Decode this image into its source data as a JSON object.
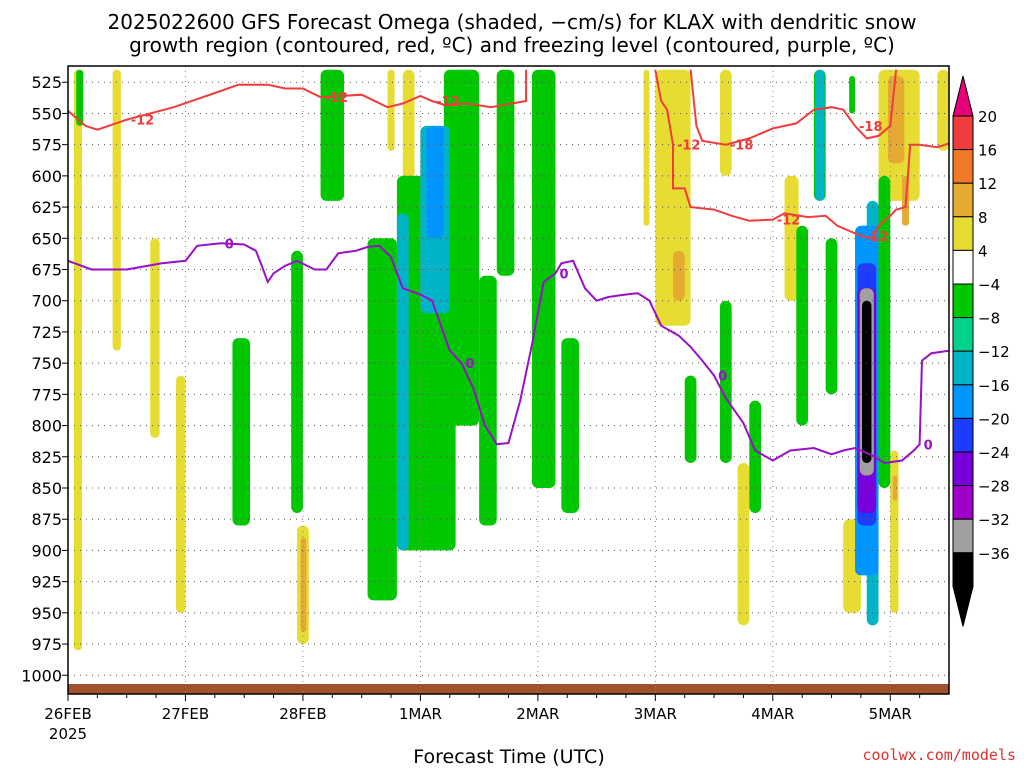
{
  "chart_data": {
    "type": "heatmap",
    "title_lines": [
      "2025022600 GFS Forecast Omega (shaded, −cm/s) for KLAX with dendritic snow",
      "growth region (contoured, red, ºC) and freezing level (contoured, purple, ºC)"
    ],
    "xlabel": "Forecast Time (UTC)",
    "x_ticks": [
      "26FEB",
      "27FEB",
      "28FEB",
      "1MAR",
      "2MAR",
      "3MAR",
      "4MAR",
      "5MAR"
    ],
    "x_year": "2025",
    "x_range_days": [
      0,
      7.5
    ],
    "y_ticks": [
      525,
      550,
      575,
      600,
      625,
      650,
      675,
      700,
      725,
      750,
      775,
      800,
      825,
      850,
      875,
      900,
      925,
      950,
      975,
      1000
    ],
    "y_range_hpa": [
      1015,
      512
    ],
    "y_axis": "pressure (hPa), reversed",
    "grid": true,
    "colorbar": {
      "labels": [
        "20",
        "16",
        "12",
        "8",
        "4",
        "−4",
        "−8",
        "−12",
        "−16",
        "−20",
        "−24",
        "−28",
        "−32",
        "−36"
      ],
      "colors": [
        "#f03c3c",
        "#f07828",
        "#e6aa32",
        "#e6dc32",
        "#ffffff",
        "#00c800",
        "#00d28c",
        "#00b4c8",
        "#0096ff",
        "#1e3cff",
        "#7800dc",
        "#a000c8",
        "#a0a0a0",
        "#000000"
      ],
      "over_color": "#e6007a",
      "under_color": "#000000"
    },
    "shaded_regions": [
      {
        "color": "#e6dc32",
        "x": [
          0.05,
          0.12
        ],
        "p": [
          515,
          980
        ]
      },
      {
        "color": "#e6dc32",
        "x": [
          0.38,
          0.45
        ],
        "p": [
          515,
          740
        ]
      },
      {
        "color": "#e6dc32",
        "x": [
          0.7,
          0.78
        ],
        "p": [
          650,
          810
        ]
      },
      {
        "color": "#e6dc32",
        "x": [
          0.92,
          1.0
        ],
        "p": [
          760,
          950
        ]
      },
      {
        "color": "#e6dc32",
        "x": [
          1.95,
          2.05
        ],
        "p": [
          880,
          975
        ]
      },
      {
        "color": "#e6aa32",
        "x": [
          1.98,
          2.03
        ],
        "p": [
          890,
          965
        ]
      },
      {
        "color": "#e6dc32",
        "x": [
          2.72,
          2.78
        ],
        "p": [
          515,
          580
        ]
      },
      {
        "color": "#e6dc32",
        "x": [
          2.85,
          2.95
        ],
        "p": [
          515,
          610
        ]
      },
      {
        "color": "#e6dc32",
        "x": [
          3.65,
          3.75
        ],
        "p": [
          515,
          610
        ]
      },
      {
        "color": "#e6dc32",
        "x": [
          4.9,
          4.95
        ],
        "p": [
          515,
          640
        ]
      },
      {
        "color": "#e6dc32",
        "x": [
          5.0,
          5.3
        ],
        "p": [
          515,
          720
        ]
      },
      {
        "color": "#e6aa32",
        "x": [
          5.15,
          5.25
        ],
        "p": [
          660,
          700
        ]
      },
      {
        "color": "#e6dc32",
        "x": [
          5.55,
          5.65
        ],
        "p": [
          515,
          600
        ]
      },
      {
        "color": "#e6dc32",
        "x": [
          5.7,
          5.8
        ],
        "p": [
          830,
          960
        ]
      },
      {
        "color": "#e6dc32",
        "x": [
          6.6,
          6.75
        ],
        "p": [
          875,
          950
        ]
      },
      {
        "color": "#e6dc32",
        "x": [
          6.85,
          6.9
        ],
        "p": [
          870,
          900
        ]
      },
      {
        "color": "#e6dc32",
        "x": [
          6.1,
          6.22
        ],
        "p": [
          600,
          700
        ]
      },
      {
        "color": "#e6dc32",
        "x": [
          6.9,
          7.25
        ],
        "p": [
          515,
          620
        ]
      },
      {
        "color": "#e6aa32",
        "x": [
          6.98,
          7.12
        ],
        "p": [
          520,
          590
        ]
      },
      {
        "color": "#e6aa32",
        "x": [
          7.1,
          7.16
        ],
        "p": [
          600,
          640
        ]
      },
      {
        "color": "#e6dc32",
        "x": [
          7.4,
          7.5
        ],
        "p": [
          515,
          580
        ]
      },
      {
        "color": "#e6dc32",
        "x": [
          7.0,
          7.07
        ],
        "p": [
          820,
          950
        ]
      },
      {
        "color": "#e6aa32",
        "x": [
          7.02,
          7.06
        ],
        "p": [
          840,
          860
        ]
      },
      {
        "color": "#00c800",
        "x": [
          0.07,
          0.13
        ],
        "p": [
          515,
          560
        ]
      },
      {
        "color": "#00c800",
        "x": [
          1.4,
          1.55
        ],
        "p": [
          730,
          880
        ]
      },
      {
        "color": "#00c800",
        "x": [
          1.9,
          2.0
        ],
        "p": [
          660,
          870
        ]
      },
      {
        "color": "#00c800",
        "x": [
          2.15,
          2.35
        ],
        "p": [
          515,
          620
        ]
      },
      {
        "color": "#00c800",
        "x": [
          2.55,
          2.8
        ],
        "p": [
          650,
          940
        ]
      },
      {
        "color": "#00c800",
        "x": [
          2.8,
          3.3
        ],
        "p": [
          600,
          900
        ]
      },
      {
        "color": "#00c800",
        "x": [
          3.2,
          3.5
        ],
        "p": [
          515,
          800
        ]
      },
      {
        "color": "#00c800",
        "x": [
          3.5,
          3.65
        ],
        "p": [
          680,
          880
        ]
      },
      {
        "color": "#00c800",
        "x": [
          3.65,
          3.8
        ],
        "p": [
          515,
          680
        ]
      },
      {
        "color": "#00c800",
        "x": [
          3.95,
          4.15
        ],
        "p": [
          515,
          850
        ]
      },
      {
        "color": "#00c800",
        "x": [
          4.2,
          4.35
        ],
        "p": [
          730,
          870
        ]
      },
      {
        "color": "#00c800",
        "x": [
          5.25,
          5.35
        ],
        "p": [
          760,
          830
        ]
      },
      {
        "color": "#00c800",
        "x": [
          5.55,
          5.65
        ],
        "p": [
          700,
          830
        ]
      },
      {
        "color": "#00c800",
        "x": [
          5.8,
          5.9
        ],
        "p": [
          780,
          870
        ]
      },
      {
        "color": "#00c800",
        "x": [
          6.2,
          6.3
        ],
        "p": [
          640,
          800
        ]
      },
      {
        "color": "#00c800",
        "x": [
          6.45,
          6.55
        ],
        "p": [
          650,
          775
        ]
      },
      {
        "color": "#00c800",
        "x": [
          6.9,
          7.0
        ],
        "p": [
          600,
          850
        ]
      },
      {
        "color": "#00c800",
        "x": [
          6.65,
          6.7
        ],
        "p": [
          520,
          550
        ]
      },
      {
        "color": "#00c800",
        "x": [
          6.35,
          6.45
        ],
        "p": [
          515,
          620
        ]
      },
      {
        "color": "#00b4c8",
        "x": [
          2.8,
          2.9
        ],
        "p": [
          630,
          900
        ]
      },
      {
        "color": "#00b4c8",
        "x": [
          3.0,
          3.25
        ],
        "p": [
          560,
          710
        ]
      },
      {
        "color": "#0096ff",
        "x": [
          3.05,
          3.2
        ],
        "p": [
          560,
          650
        ]
      },
      {
        "color": "#00b4c8",
        "x": [
          6.36,
          6.44
        ],
        "p": [
          515,
          620
        ]
      },
      {
        "color": "#00b4c8",
        "x": [
          6.8,
          6.9
        ],
        "p": [
          620,
          960
        ]
      },
      {
        "color": "#0096ff",
        "x": [
          6.7,
          6.9
        ],
        "p": [
          640,
          920
        ]
      },
      {
        "color": "#1e3cff",
        "x": [
          6.72,
          6.88
        ],
        "p": [
          670,
          880
        ]
      },
      {
        "color": "#7800dc",
        "x": [
          6.72,
          6.88
        ],
        "p": [
          690,
          870
        ]
      },
      {
        "color": "#a0a0a0",
        "x": [
          6.74,
          6.86
        ],
        "p": [
          690,
          840
        ]
      },
      {
        "color": "#000000",
        "x": [
          6.76,
          6.84
        ],
        "p": [
          700,
          830
        ]
      }
    ],
    "snow_growth_contours": [
      {
        "label": "-12",
        "points": [
          [
            0,
            548
          ],
          [
            0.15,
            560
          ],
          [
            0.25,
            563
          ],
          [
            0.5,
            555
          ],
          [
            0.9,
            545
          ],
          [
            1.3,
            532
          ],
          [
            1.45,
            527
          ],
          [
            1.7,
            527
          ],
          [
            1.85,
            530
          ],
          [
            2.0,
            530
          ],
          [
            2.15,
            537
          ],
          [
            2.5,
            535
          ],
          [
            2.72,
            545
          ],
          [
            2.85,
            542
          ],
          [
            3.0,
            536
          ],
          [
            3.1,
            540
          ],
          [
            3.2,
            543
          ],
          [
            3.4,
            542
          ],
          [
            3.6,
            545
          ],
          [
            3.9,
            540
          ],
          [
            3.9,
            515
          ]
        ]
      },
      {
        "label": "-12",
        "points": [
          [
            5.0,
            515
          ],
          [
            5.05,
            540
          ],
          [
            5.1,
            547
          ],
          [
            5.15,
            575
          ],
          [
            5.15,
            610
          ],
          [
            5.25,
            610
          ],
          [
            5.3,
            625
          ],
          [
            5.5,
            627
          ],
          [
            5.65,
            632
          ],
          [
            5.8,
            636
          ],
          [
            6.0,
            635
          ],
          [
            6.1,
            630
          ],
          [
            6.3,
            633
          ],
          [
            6.45,
            632
          ],
          [
            6.55,
            640
          ],
          [
            6.75,
            648
          ],
          [
            6.85,
            650
          ],
          [
            6.9,
            640
          ],
          [
            7.0,
            632
          ],
          [
            7.05,
            627
          ],
          [
            7.13,
            625
          ],
          [
            7.15,
            600
          ],
          [
            7.17,
            575
          ],
          [
            7.25,
            575
          ],
          [
            7.4,
            577
          ],
          [
            7.5,
            574
          ]
        ]
      },
      {
        "label": "-18",
        "points": [
          [
            5.3,
            515
          ],
          [
            5.35,
            560
          ],
          [
            5.4,
            572
          ],
          [
            5.6,
            575
          ],
          [
            5.8,
            570
          ],
          [
            6.0,
            562
          ],
          [
            6.2,
            558
          ],
          [
            6.35,
            547
          ],
          [
            6.5,
            545
          ],
          [
            6.6,
            547
          ],
          [
            6.7,
            560
          ],
          [
            6.8,
            570
          ],
          [
            6.9,
            568
          ],
          [
            7.0,
            560
          ],
          [
            7.05,
            515
          ]
        ]
      }
    ],
    "freezing_level_contours": [
      {
        "label": "0",
        "points": [
          [
            0,
            668
          ],
          [
            0.2,
            675
          ],
          [
            0.5,
            675
          ],
          [
            0.8,
            670
          ],
          [
            1.0,
            668
          ],
          [
            1.1,
            656
          ],
          [
            1.3,
            654
          ],
          [
            1.5,
            655
          ],
          [
            1.6,
            660
          ],
          [
            1.65,
            672
          ],
          [
            1.7,
            685
          ],
          [
            1.75,
            678
          ],
          [
            1.85,
            672
          ],
          [
            1.95,
            668
          ],
          [
            2.1,
            675
          ],
          [
            2.2,
            675
          ],
          [
            2.3,
            662
          ],
          [
            2.45,
            660
          ],
          [
            2.55,
            657
          ],
          [
            2.65,
            656
          ],
          [
            2.75,
            665
          ],
          [
            2.85,
            690
          ],
          [
            3.0,
            695
          ],
          [
            3.1,
            700
          ],
          [
            3.25,
            740
          ],
          [
            3.35,
            750
          ],
          [
            3.45,
            770
          ],
          [
            3.55,
            800
          ],
          [
            3.65,
            815
          ],
          [
            3.75,
            814
          ],
          [
            3.85,
            780
          ],
          [
            3.95,
            735
          ],
          [
            4.05,
            685
          ],
          [
            4.15,
            678
          ],
          [
            4.2,
            670
          ],
          [
            4.3,
            668
          ],
          [
            4.4,
            690
          ],
          [
            4.5,
            700
          ],
          [
            4.6,
            697
          ],
          [
            4.75,
            695
          ],
          [
            4.85,
            694
          ],
          [
            4.95,
            700
          ],
          [
            5.05,
            720
          ],
          [
            5.2,
            728
          ],
          [
            5.3,
            737
          ],
          [
            5.4,
            748
          ],
          [
            5.5,
            760
          ],
          [
            5.6,
            778
          ],
          [
            5.75,
            798
          ],
          [
            5.85,
            820
          ],
          [
            6.0,
            828
          ],
          [
            6.15,
            820
          ],
          [
            6.35,
            818
          ],
          [
            6.5,
            823
          ],
          [
            6.6,
            820
          ],
          [
            6.7,
            818
          ],
          [
            6.85,
            824
          ],
          [
            6.95,
            830
          ],
          [
            7.1,
            828
          ],
          [
            7.2,
            820
          ],
          [
            7.25,
            815
          ],
          [
            7.27,
            748
          ],
          [
            7.35,
            742
          ],
          [
            7.5,
            740
          ]
        ]
      }
    ]
  },
  "credit": "coolwx.com/models"
}
